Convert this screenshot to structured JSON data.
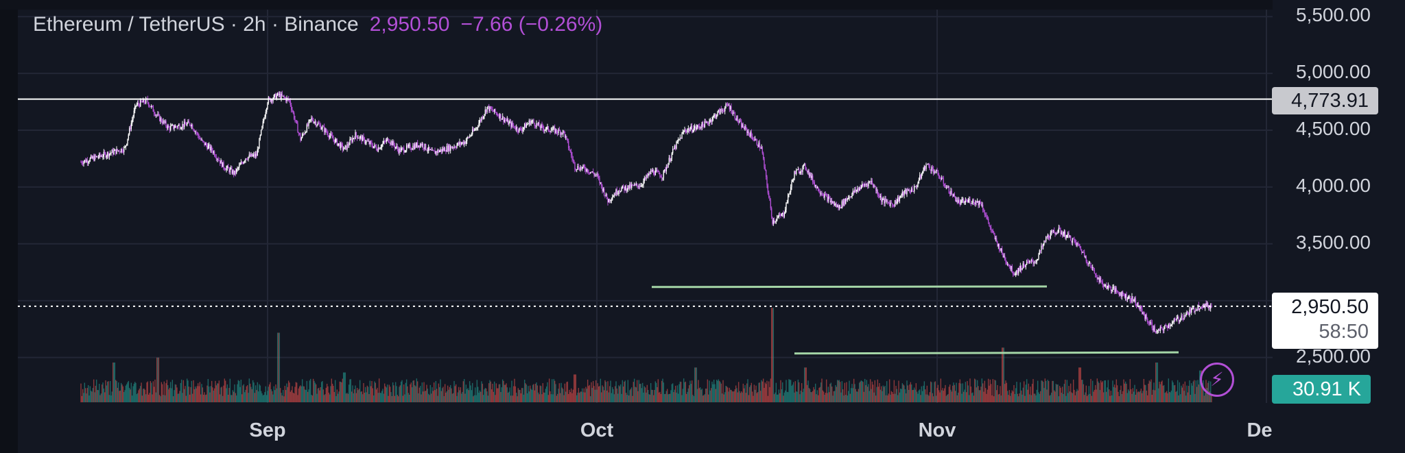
{
  "legend": {
    "symbol": "Ethereum / TetherUS · 2h · Binance",
    "price": "2,950.50",
    "change": "−7.66 (−0.26%)"
  },
  "colors": {
    "background": "#131722",
    "grid": "#232736",
    "candle_up": "#ffffff",
    "candle_down": "#b24fd6",
    "volume_up": "#26a69a",
    "volume_down": "#ef5350",
    "level_line": "#ffffff",
    "trend_line": "#a5d6a7",
    "accent": "#b24fd6"
  },
  "price_axis": {
    "labels": [
      "5,500.00",
      "5,000.00",
      "4,500.00",
      "4,000.00",
      "3,500.00",
      "2,500.00"
    ],
    "tag_level": "4,773.91",
    "tag_last_price": "2,950.50",
    "tag_countdown": "58:50",
    "tag_volume": "30.91 K"
  },
  "time_axis": {
    "labels": [
      "Sep",
      "Oct",
      "Nov",
      "De"
    ]
  },
  "icons": {
    "lightning": "lightning-icon"
  },
  "chart_data": {
    "type": "candlestick",
    "symbol": "ETH/USDT",
    "interval": "2h",
    "exchange": "Binance",
    "ylim": [
      2450,
      5500
    ],
    "y_ticks": [
      5500,
      5000,
      4500,
      4000,
      3500,
      2500
    ],
    "x_range": [
      "2025-08-15",
      "2025-11-30"
    ],
    "x_ticks": [
      "2025-09-01",
      "2025-10-01",
      "2025-11-01",
      "2025-12-01"
    ],
    "grid": true,
    "last_price": 2950.5,
    "horizontal_levels": [
      4773.91
    ],
    "trend_lines": [
      {
        "x1": "2025-10-06",
        "y1": 3120,
        "x2": "2025-11-11",
        "y2": 3125
      },
      {
        "x1": "2025-10-19",
        "y1": 2535,
        "x2": "2025-11-23",
        "y2": 2545
      }
    ],
    "close_path": [
      [
        "2025-08-15",
        4220
      ],
      [
        "2025-08-17",
        4280
      ],
      [
        "2025-08-19",
        4340
      ],
      [
        "2025-08-20",
        4720
      ],
      [
        "2025-08-21",
        4760
      ],
      [
        "2025-08-22",
        4620
      ],
      [
        "2025-08-23",
        4520
      ],
      [
        "2025-08-25",
        4560
      ],
      [
        "2025-08-26",
        4400
      ],
      [
        "2025-08-27",
        4320
      ],
      [
        "2025-08-28",
        4180
      ],
      [
        "2025-08-29",
        4120
      ],
      [
        "2025-08-30",
        4260
      ],
      [
        "2025-08-31",
        4280
      ],
      [
        "2025-09-01",
        4760
      ],
      [
        "2025-09-02",
        4810
      ],
      [
        "2025-09-03",
        4760
      ],
      [
        "2025-09-04",
        4420
      ],
      [
        "2025-09-05",
        4600
      ],
      [
        "2025-09-06",
        4520
      ],
      [
        "2025-09-07",
        4420
      ],
      [
        "2025-09-08",
        4330
      ],
      [
        "2025-09-09",
        4460
      ],
      [
        "2025-09-10",
        4400
      ],
      [
        "2025-09-11",
        4340
      ],
      [
        "2025-09-12",
        4420
      ],
      [
        "2025-09-13",
        4320
      ],
      [
        "2025-09-15",
        4380
      ],
      [
        "2025-09-16",
        4300
      ],
      [
        "2025-09-17",
        4330
      ],
      [
        "2025-09-18",
        4360
      ],
      [
        "2025-09-19",
        4400
      ],
      [
        "2025-09-20",
        4520
      ],
      [
        "2025-09-21",
        4700
      ],
      [
        "2025-09-22",
        4640
      ],
      [
        "2025-09-23",
        4560
      ],
      [
        "2025-09-24",
        4500
      ],
      [
        "2025-09-25",
        4580
      ],
      [
        "2025-09-26",
        4520
      ],
      [
        "2025-09-27",
        4500
      ],
      [
        "2025-09-28",
        4480
      ],
      [
        "2025-09-29",
        4180
      ],
      [
        "2025-09-30",
        4160
      ],
      [
        "2025-10-01",
        4100
      ],
      [
        "2025-10-02",
        3880
      ],
      [
        "2025-10-03",
        3980
      ],
      [
        "2025-10-04",
        4000
      ],
      [
        "2025-10-05",
        4020
      ],
      [
        "2025-10-06",
        4140
      ],
      [
        "2025-10-07",
        4100
      ],
      [
        "2025-10-08",
        4330
      ],
      [
        "2025-10-09",
        4500
      ],
      [
        "2025-10-10",
        4520
      ],
      [
        "2025-10-11",
        4560
      ],
      [
        "2025-10-12",
        4650
      ],
      [
        "2025-10-13",
        4720
      ],
      [
        "2025-10-14",
        4560
      ],
      [
        "2025-10-15",
        4460
      ],
      [
        "2025-10-16",
        4340
      ],
      [
        "2025-10-17",
        3700
      ],
      [
        "2025-10-18",
        3760
      ],
      [
        "2025-10-19",
        4120
      ],
      [
        "2025-10-20",
        4180
      ],
      [
        "2025-10-21",
        4000
      ],
      [
        "2025-10-22",
        3900
      ],
      [
        "2025-10-23",
        3820
      ],
      [
        "2025-10-24",
        3920
      ],
      [
        "2025-10-25",
        4000
      ],
      [
        "2025-10-26",
        4050
      ],
      [
        "2025-10-27",
        3880
      ],
      [
        "2025-10-28",
        3850
      ],
      [
        "2025-10-29",
        3950
      ],
      [
        "2025-10-30",
        3990
      ],
      [
        "2025-10-31",
        4200
      ],
      [
        "2025-11-01",
        4120
      ],
      [
        "2025-11-02",
        3980
      ],
      [
        "2025-11-03",
        3860
      ],
      [
        "2025-11-04",
        3880
      ],
      [
        "2025-11-05",
        3860
      ],
      [
        "2025-11-06",
        3600
      ],
      [
        "2025-11-07",
        3400
      ],
      [
        "2025-11-08",
        3240
      ],
      [
        "2025-11-09",
        3320
      ],
      [
        "2025-11-10",
        3350
      ],
      [
        "2025-11-11",
        3560
      ],
      [
        "2025-11-12",
        3620
      ],
      [
        "2025-11-13",
        3560
      ],
      [
        "2025-11-14",
        3470
      ],
      [
        "2025-11-15",
        3300
      ],
      [
        "2025-11-16",
        3150
      ],
      [
        "2025-11-17",
        3100
      ],
      [
        "2025-11-18",
        3050
      ],
      [
        "2025-11-19",
        3000
      ],
      [
        "2025-11-20",
        2850
      ],
      [
        "2025-11-21",
        2720
      ],
      [
        "2025-11-22",
        2780
      ],
      [
        "2025-11-23",
        2840
      ],
      [
        "2025-11-24",
        2900
      ],
      [
        "2025-11-25",
        2960
      ],
      [
        "2025-11-26",
        2950
      ]
    ],
    "volume": {
      "last": "30.91 K",
      "spikes": [
        [
          "2025-08-18",
          0.4
        ],
        [
          "2025-08-22",
          0.45
        ],
        [
          "2025-09-02",
          0.7
        ],
        [
          "2025-09-08",
          0.3
        ],
        [
          "2025-09-29",
          0.28
        ],
        [
          "2025-10-10",
          0.35
        ],
        [
          "2025-10-17",
          0.95
        ],
        [
          "2025-10-20",
          0.35
        ],
        [
          "2025-11-07",
          0.55
        ],
        [
          "2025-11-14",
          0.35
        ],
        [
          "2025-11-21",
          0.4
        ],
        [
          "2025-11-25",
          0.32
        ]
      ]
    }
  }
}
